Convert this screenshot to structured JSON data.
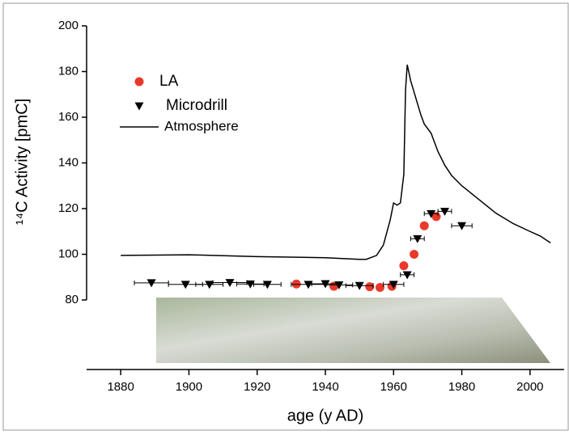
{
  "chart_data": {
    "type": "scatter",
    "xlabel": "age (y AD)",
    "ylabel": "¹⁴C Activity [pmC]",
    "xlim": [
      1870,
      2010
    ],
    "xticks": [
      1880,
      1900,
      1920,
      1940,
      1960,
      1980,
      2000
    ],
    "ylim": [
      80,
      200
    ],
    "yticks": [
      80,
      100,
      120,
      140,
      160,
      180,
      200
    ],
    "legend": "upper left",
    "series": [
      {
        "name": "LA",
        "color": "#e8392b",
        "marker": "circle",
        "x": [
          1931.5,
          1942.5,
          1953,
          1956,
          1959.5,
          1963,
          1966,
          1969,
          1972.5
        ],
        "values": [
          87,
          86,
          85.8,
          85.5,
          86,
          95,
          100,
          112.5,
          116.5
        ]
      },
      {
        "name": "Microdrill",
        "color": "#000000",
        "marker": "triangle-down",
        "x": [
          1889,
          1899,
          1906,
          1912,
          1918,
          1923,
          1935,
          1940,
          1944,
          1950,
          1960,
          1964,
          1967,
          1971,
          1975,
          1980
        ],
        "values": [
          87.5,
          86.8,
          86.8,
          87.6,
          87,
          86.8,
          86.8,
          87.1,
          86.6,
          86.3,
          86.8,
          91,
          106.8,
          117.8,
          118.8,
          112.5
        ],
        "xerr": [
          5,
          5,
          4,
          5,
          4,
          4,
          5,
          4,
          4,
          4,
          3,
          2,
          2,
          2,
          2,
          3
        ]
      },
      {
        "name": "Atmosphere",
        "color": "#000000",
        "marker": "line",
        "x": [
          1880,
          1900,
          1920,
          1940,
          1950,
          1952,
          1955,
          1957,
          1959,
          1960,
          1961,
          1962,
          1963,
          1963.5,
          1964,
          1965,
          1966,
          1968,
          1969,
          1971,
          1973,
          1975,
          1977,
          1980,
          1985,
          1990,
          1995,
          2000,
          2003,
          2006
        ],
        "values": [
          99.5,
          99.8,
          99,
          98.5,
          97.8,
          97.8,
          99.5,
          104,
          115,
          122.5,
          121.5,
          122.5,
          135,
          172,
          183,
          176,
          171,
          161,
          157,
          153,
          145,
          139,
          134.5,
          130,
          124,
          118,
          113.5,
          110,
          108,
          105
        ]
      }
    ]
  }
}
